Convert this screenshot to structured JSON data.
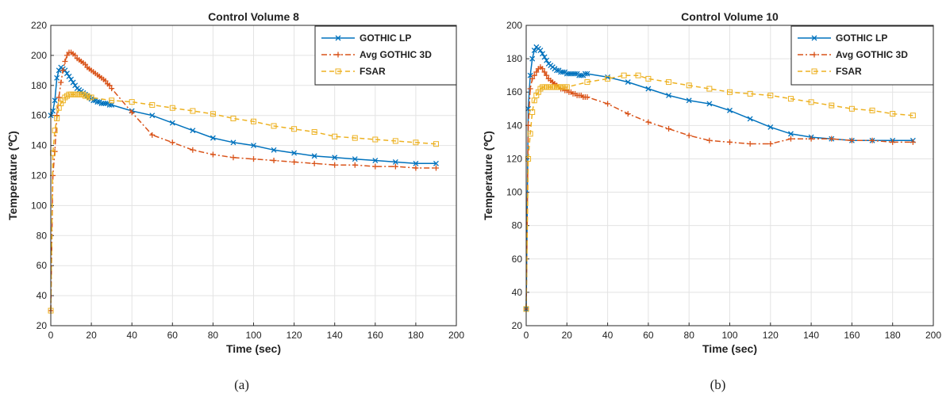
{
  "colors": {
    "gothic_lp": "#0072BD",
    "avg_gothic_3d": "#D95319",
    "fsar": "#EDB120"
  },
  "chart_data": [
    {
      "type": "line",
      "title": "Control Volume 8",
      "xlabel": "Time (sec)",
      "ylabel": "Temperature (℃)",
      "xlim": [
        0,
        200
      ],
      "ylim": [
        20,
        220
      ],
      "xticks": [
        0,
        20,
        40,
        60,
        80,
        100,
        120,
        140,
        160,
        180,
        200
      ],
      "yticks": [
        20,
        40,
        60,
        80,
        100,
        120,
        140,
        160,
        180,
        200,
        220
      ],
      "grid": true,
      "legend_position": "top-right",
      "caption": "(a)",
      "series": [
        {
          "name": "GOTHIC LP",
          "color": "#0072BD",
          "marker": "x",
          "linestyle": "solid",
          "x": [
            0,
            1,
            2,
            3,
            4,
            5,
            6,
            7,
            8,
            9,
            10,
            11,
            12,
            13,
            14,
            15,
            16,
            17,
            18,
            19,
            20,
            21,
            22,
            23,
            24,
            25,
            26,
            27,
            28,
            29,
            30,
            40,
            50,
            60,
            70,
            80,
            90,
            100,
            110,
            120,
            130,
            140,
            150,
            160,
            170,
            180,
            190
          ],
          "y": [
            160,
            163,
            170,
            185,
            190,
            192,
            191,
            190,
            188,
            186,
            184,
            182,
            180,
            178,
            177,
            176,
            175,
            174,
            173,
            172,
            171,
            170,
            170,
            169,
            169,
            168,
            168,
            168,
            168,
            167,
            167,
            163,
            160,
            155,
            150,
            145,
            142,
            140,
            137,
            135,
            133,
            132,
            131,
            130,
            129,
            128,
            128
          ]
        },
        {
          "name": "Avg GOTHIC 3D",
          "color": "#D95319",
          "marker": "+",
          "linestyle": "dashdot",
          "x": [
            0,
            1,
            2,
            3,
            4,
            5,
            6,
            7,
            8,
            9,
            10,
            11,
            12,
            13,
            14,
            15,
            16,
            17,
            18,
            19,
            20,
            21,
            22,
            23,
            24,
            25,
            26,
            27,
            28,
            29,
            30,
            40,
            50,
            60,
            70,
            80,
            90,
            100,
            110,
            120,
            130,
            140,
            150,
            160,
            170,
            180,
            190
          ],
          "y": [
            30,
            120,
            136,
            160,
            172,
            182,
            190,
            196,
            200,
            202,
            202,
            201,
            200,
            198,
            197,
            196,
            195,
            194,
            192,
            191,
            190,
            189,
            188,
            187,
            186,
            185,
            184,
            183,
            181,
            180,
            178,
            162,
            147,
            142,
            137,
            134,
            132,
            131,
            130,
            129,
            128,
            127,
            127,
            126,
            126,
            125,
            125
          ]
        },
        {
          "name": "FSAR",
          "color": "#EDB120",
          "marker": "square",
          "linestyle": "dashed",
          "x": [
            0,
            1,
            2,
            3,
            4,
            5,
            6,
            7,
            8,
            9,
            10,
            11,
            12,
            13,
            14,
            15,
            16,
            17,
            18,
            19,
            20,
            30,
            40,
            50,
            60,
            70,
            80,
            90,
            100,
            110,
            120,
            130,
            140,
            150,
            160,
            170,
            180,
            190
          ],
          "y": [
            30,
            135,
            150,
            158,
            165,
            168,
            170,
            172,
            173,
            174,
            174,
            174,
            174,
            174,
            174,
            174,
            174,
            173,
            173,
            172,
            172,
            170,
            169,
            167,
            165,
            163,
            161,
            158,
            156,
            153,
            151,
            149,
            146,
            145,
            144,
            143,
            142,
            141
          ]
        }
      ]
    },
    {
      "type": "line",
      "title": "Control Volume 10",
      "xlabel": "Time (sec)",
      "ylabel": "Temperature (℃)",
      "xlim": [
        0,
        200
      ],
      "ylim": [
        20,
        200
      ],
      "xticks": [
        0,
        20,
        40,
        60,
        80,
        100,
        120,
        140,
        160,
        180,
        200
      ],
      "yticks": [
        20,
        40,
        60,
        80,
        100,
        120,
        140,
        160,
        180,
        200
      ],
      "grid": true,
      "legend_position": "top-right",
      "caption": "(b)",
      "series": [
        {
          "name": "GOTHIC LP",
          "color": "#0072BD",
          "marker": "x",
          "linestyle": "solid",
          "x": [
            0,
            1,
            2,
            3,
            4,
            5,
            6,
            7,
            8,
            9,
            10,
            11,
            12,
            13,
            14,
            15,
            16,
            17,
            18,
            19,
            20,
            21,
            22,
            23,
            24,
            25,
            26,
            27,
            28,
            29,
            30,
            40,
            50,
            60,
            70,
            80,
            90,
            100,
            110,
            120,
            130,
            140,
            150,
            160,
            170,
            180,
            190
          ],
          "y": [
            30,
            150,
            170,
            180,
            185,
            187,
            186,
            185,
            183,
            181,
            179,
            177,
            176,
            175,
            174,
            173,
            173,
            172,
            172,
            172,
            171,
            171,
            171,
            171,
            171,
            171,
            170,
            170,
            170,
            171,
            171,
            169,
            166,
            162,
            158,
            155,
            153,
            149,
            144,
            139,
            135,
            133,
            132,
            131,
            131,
            131,
            131
          ]
        },
        {
          "name": "Avg GOTHIC 3D",
          "color": "#D95319",
          "marker": "+",
          "linestyle": "dashdot",
          "x": [
            0,
            1,
            2,
            3,
            4,
            5,
            6,
            7,
            8,
            9,
            10,
            11,
            12,
            13,
            14,
            15,
            16,
            17,
            18,
            19,
            20,
            21,
            22,
            23,
            24,
            25,
            26,
            27,
            28,
            29,
            30,
            40,
            50,
            60,
            70,
            80,
            90,
            100,
            110,
            120,
            130,
            140,
            150,
            160,
            170,
            180,
            190
          ],
          "y": [
            30,
            140,
            162,
            168,
            170,
            172,
            174,
            175,
            174,
            172,
            170,
            168,
            167,
            166,
            165,
            164,
            163,
            162,
            162,
            161,
            161,
            160,
            160,
            159,
            159,
            158,
            158,
            158,
            157,
            157,
            157,
            153,
            147,
            142,
            138,
            134,
            131,
            130,
            129,
            129,
            132,
            132,
            132,
            131,
            131,
            130,
            130
          ]
        },
        {
          "name": "FSAR",
          "color": "#EDB120",
          "marker": "square",
          "linestyle": "dashed",
          "x": [
            0,
            1,
            2,
            3,
            4,
            5,
            6,
            7,
            8,
            9,
            10,
            11,
            12,
            13,
            14,
            15,
            16,
            17,
            18,
            19,
            20,
            30,
            40,
            48,
            55,
            60,
            70,
            80,
            90,
            100,
            110,
            120,
            130,
            140,
            150,
            160,
            170,
            180,
            190
          ],
          "y": [
            30,
            120,
            135,
            148,
            155,
            158,
            160,
            162,
            163,
            163,
            163,
            163,
            163,
            163,
            163,
            163,
            163,
            163,
            163,
            163,
            163,
            166,
            168,
            170,
            170,
            168,
            166,
            164,
            162,
            160,
            159,
            158,
            156,
            154,
            152,
            150,
            149,
            147,
            146
          ]
        }
      ]
    }
  ]
}
